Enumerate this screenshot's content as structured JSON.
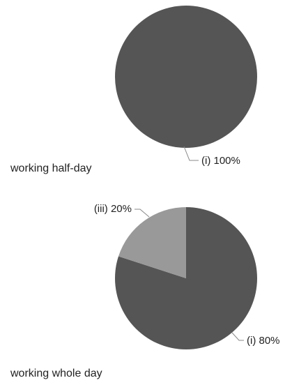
{
  "chart_data": [
    {
      "type": "pie",
      "title": "working half-day",
      "slices": [
        {
          "category": "(i)",
          "value": 100,
          "label": "(i) 100%",
          "color": "#555555"
        }
      ]
    },
    {
      "type": "pie",
      "title": "working whole day",
      "slices": [
        {
          "category": "(i)",
          "value": 80,
          "label": "(i) 80%",
          "color": "#555555"
        },
        {
          "category": "(iii)",
          "value": 20,
          "label": "(iii) 20%",
          "color": "#999999"
        }
      ]
    }
  ]
}
